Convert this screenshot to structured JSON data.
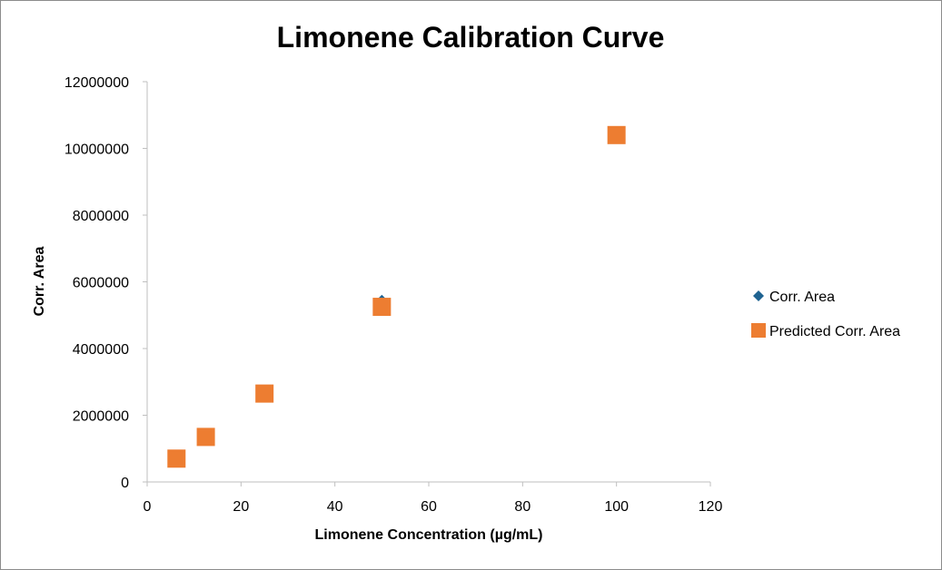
{
  "chart_data": {
    "type": "scatter",
    "title": "Limonene Calibration Curve",
    "xlabel": "Limonene Concentration (µg/mL)",
    "ylabel": "Corr. Area",
    "xlim": [
      0,
      120
    ],
    "ylim": [
      0,
      12000000
    ],
    "x_ticks": [
      "0",
      "20",
      "40",
      "60",
      "80",
      "100",
      "120"
    ],
    "y_ticks": [
      "0",
      "2000000",
      "4000000",
      "6000000",
      "8000000",
      "10000000",
      "12000000"
    ],
    "grid": false,
    "legend_position": "right",
    "series": [
      {
        "name": "Corr. Area",
        "marker": "diamond",
        "color": "#1f6391",
        "points": [
          [
            6.25,
            600000
          ],
          [
            12.5,
            1450000
          ],
          [
            25,
            2600000
          ],
          [
            50,
            5450000
          ],
          [
            100,
            10300000
          ]
        ]
      },
      {
        "name": "Predicted Corr. Area",
        "marker": "square",
        "color": "#ed7d31",
        "points": [
          [
            6.25,
            700000
          ],
          [
            12.5,
            1350000
          ],
          [
            25,
            2650000
          ],
          [
            50,
            5250000
          ],
          [
            100,
            10400000
          ]
        ]
      }
    ]
  }
}
